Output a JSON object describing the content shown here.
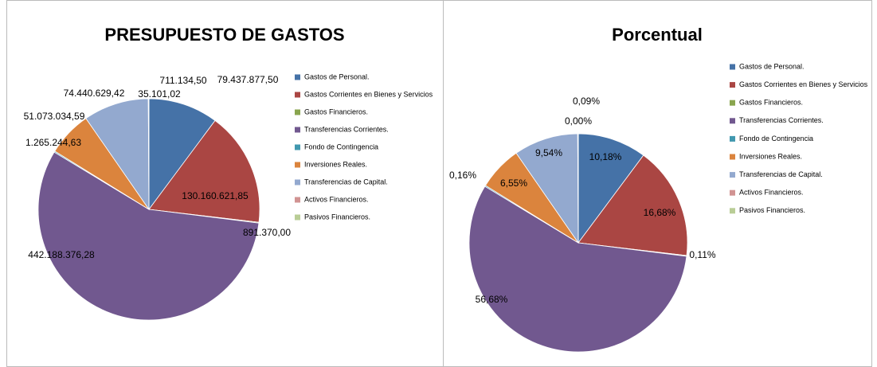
{
  "chart_data": [
    {
      "type": "pie",
      "title": "PRESUPUESTO DE GASTOS",
      "categories": [
        "Gastos de Personal.",
        "Gastos Corrientes en Bienes y Servicios",
        "Gastos Financieros.",
        "Transferencias Corrientes.",
        "Fondo de Contingencia",
        "Inversiones Reales.",
        "Transferencias de Capital.",
        "Activos Financieros.",
        "Pasivos Financieros."
      ],
      "values": [
        79437877.5,
        130160621.85,
        891370.0,
        442188376.28,
        1265244.63,
        51073034.59,
        74440629.42,
        711134.5,
        35101.02
      ],
      "value_labels": [
        "79.437.877,50",
        "130.160.621,85",
        "891.370,00",
        "442.188.376,28",
        "1.265.244,63",
        "51.073.034,59",
        "74.440.629,42",
        "711.134,50",
        "35.101,02"
      ],
      "colors": [
        "#4572a7",
        "#aa4643",
        "#89a54e",
        "#71588f",
        "#4198af",
        "#db843d",
        "#93a9cf",
        "#d19392",
        "#b9cd96"
      ]
    },
    {
      "type": "pie",
      "title": "Porcentual",
      "categories": [
        "Gastos de Personal.",
        "Gastos Corrientes en Bienes y Servicios",
        "Gastos Financieros.",
        "Transferencias Corrientes.",
        "Fondo de Contingencia",
        "Inversiones Reales.",
        "Transferencias de Capital.",
        "Activos Financieros.",
        "Pasivos Financieros."
      ],
      "values": [
        10.18,
        16.68,
        0.11,
        56.68,
        0.16,
        6.55,
        9.54,
        0.09,
        0.0
      ],
      "value_labels": [
        "10,18%",
        "16,68%",
        "0,11%",
        "56,68%",
        "0,16%",
        "6,55%",
        "9,54%",
        "0,09%",
        "0,00%"
      ],
      "colors": [
        "#4572a7",
        "#aa4643",
        "#89a54e",
        "#71588f",
        "#4198af",
        "#db843d",
        "#93a9cf",
        "#d19392",
        "#b9cd96"
      ]
    }
  ]
}
